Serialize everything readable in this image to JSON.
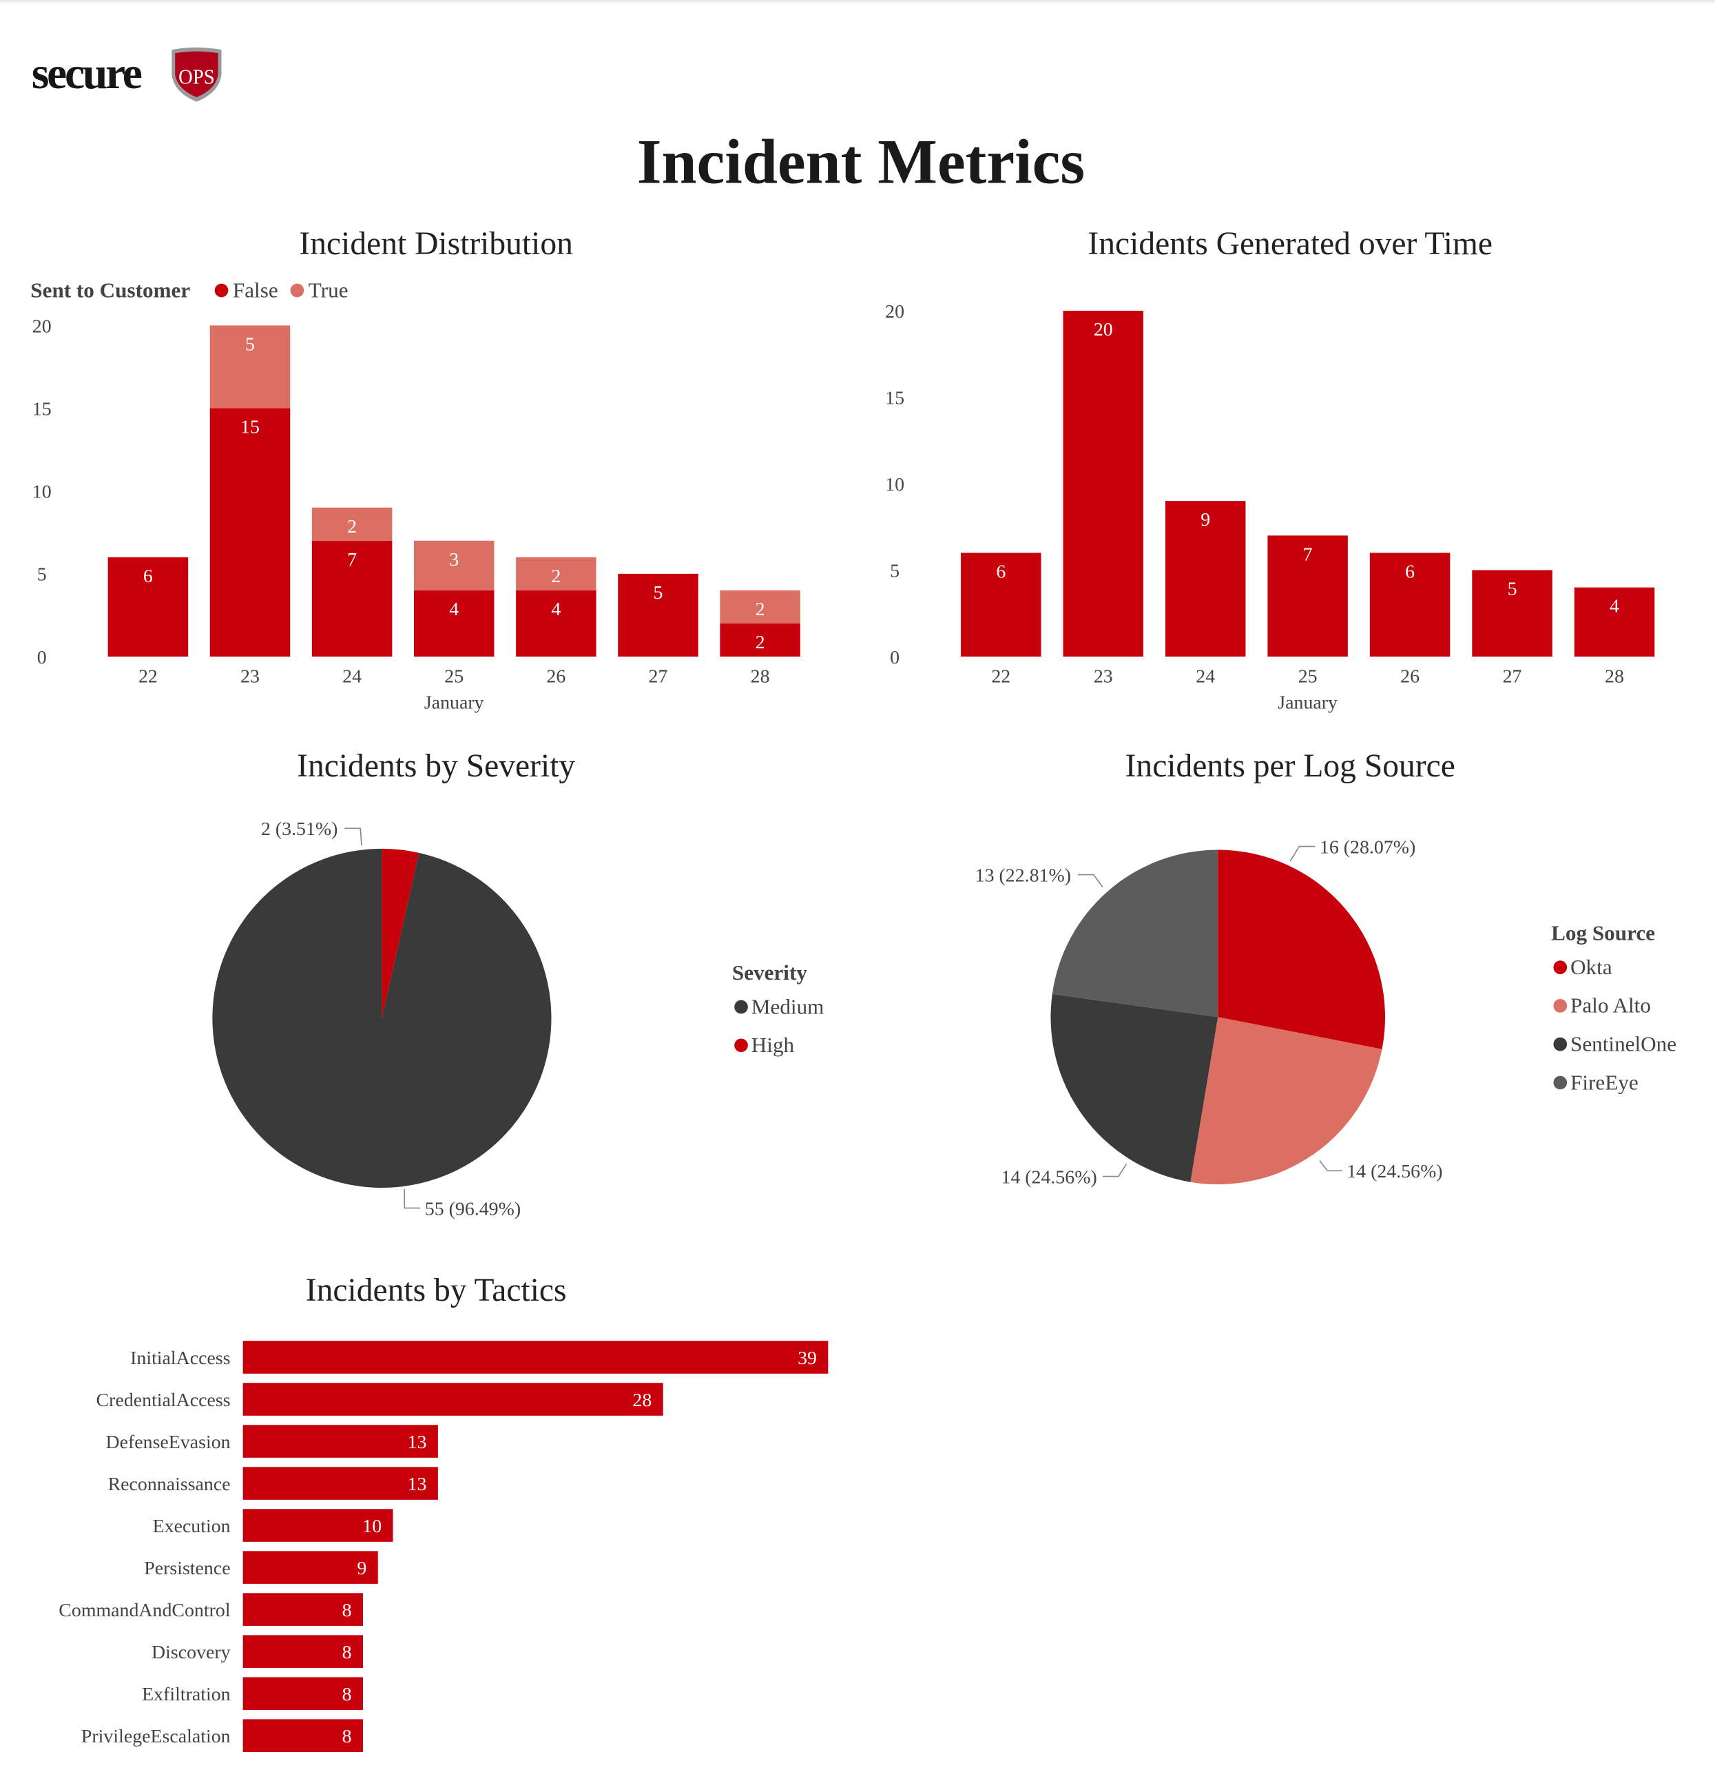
{
  "logo": {
    "text": "secure",
    "badge": "OPS"
  },
  "page_title": "Incident Metrics",
  "colors": {
    "red": "#C8000B",
    "light_red": "#DB6F63",
    "dark": "#3A3A3A",
    "grey": "#5C5C5C",
    "text": "#444444"
  },
  "chart_data": [
    {
      "type": "bar",
      "stacked": true,
      "title": "Incident Distribution",
      "legend_title": "Sent to Customer",
      "legend_position": "top-left",
      "categories": [
        "22",
        "23",
        "24",
        "25",
        "26",
        "27",
        "28"
      ],
      "xlabel": "January",
      "ylim": [
        0,
        20
      ],
      "yticks": [
        "0",
        "5",
        "10",
        "15",
        "20"
      ],
      "series": [
        {
          "name": "False",
          "color": "#C8000B",
          "values": [
            6,
            15,
            7,
            4,
            4,
            5,
            2
          ]
        },
        {
          "name": "True",
          "color": "#DB6F63",
          "values": [
            0,
            5,
            2,
            3,
            2,
            0,
            2
          ]
        }
      ]
    },
    {
      "type": "bar",
      "title": "Incidents Generated over Time",
      "categories": [
        "22",
        "23",
        "24",
        "25",
        "26",
        "27",
        "28"
      ],
      "xlabel": "January",
      "ylim": [
        0,
        20
      ],
      "yticks": [
        "0",
        "5",
        "10",
        "15",
        "20"
      ],
      "values": [
        6,
        20,
        9,
        7,
        6,
        5,
        4
      ],
      "color": "#C8000B"
    },
    {
      "type": "pie",
      "title": "Incidents by Severity",
      "legend_title": "Severity",
      "legend_position": "right",
      "slices": [
        {
          "name": "Medium",
          "value": 55,
          "label": "55 (96.49%)",
          "color": "#3A3A3A"
        },
        {
          "name": "High",
          "value": 2,
          "label": "2 (3.51%)",
          "color": "#C8000B"
        }
      ]
    },
    {
      "type": "pie",
      "title": "Incidents per Log Source",
      "legend_title": "Log Source",
      "legend_position": "right",
      "slices": [
        {
          "name": "Okta",
          "value": 16,
          "label": "16 (28.07%)",
          "color": "#C8000B"
        },
        {
          "name": "Palo Alto",
          "value": 14,
          "label": "14 (24.56%)",
          "color": "#DB6F63"
        },
        {
          "name": "SentinelOne",
          "value": 14,
          "label": "14 (24.56%)",
          "color": "#3A3A3A"
        },
        {
          "name": "FireEye",
          "value": 13,
          "label": "13 (22.81%)",
          "color": "#5C5C5C"
        }
      ]
    },
    {
      "type": "bar",
      "orientation": "horizontal",
      "title": "Incidents by Tactics",
      "categories": [
        "InitialAccess",
        "CredentialAccess",
        "DefenseEvasion",
        "Reconnaissance",
        "Execution",
        "Persistence",
        "CommandAndControl",
        "Discovery",
        "Exfiltration",
        "PrivilegeEscalation"
      ],
      "values": [
        39,
        28,
        13,
        13,
        10,
        9,
        8,
        8,
        8,
        8
      ],
      "color": "#C8000B"
    }
  ]
}
